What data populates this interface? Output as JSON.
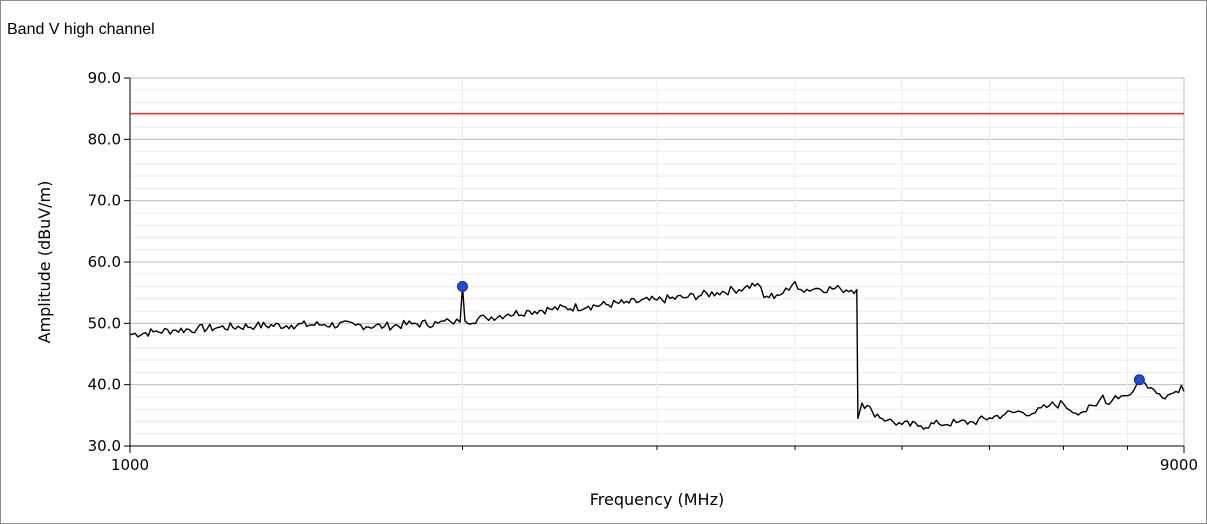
{
  "chart_data": {
    "type": "line",
    "title": "Band V high channel",
    "xlabel": "Frequency (MHz)",
    "ylabel": "Amplitude (dBuV/m)",
    "xscale": "log",
    "xlim": [
      1000,
      9000
    ],
    "ylim": [
      30,
      90
    ],
    "x_tick_labels": [
      "1000",
      "9000"
    ],
    "x_minor_ticks": [
      2000,
      3000,
      4000,
      5000,
      6000,
      7000,
      8000
    ],
    "y_ticks": [
      30,
      40,
      50,
      60,
      70,
      80,
      90
    ],
    "y_tick_labels": [
      "30.0",
      "40.0",
      "50.0",
      "60.0",
      "70.0",
      "80.0",
      "90.0"
    ],
    "grid": true,
    "limit_line": {
      "value": 84.2,
      "color": "#e8321e"
    },
    "series": [
      {
        "color": "#000000",
        "points": [
          [
            1000,
            48.2
          ],
          [
            1050,
            48.6
          ],
          [
            1100,
            48.9
          ],
          [
            1150,
            49.1
          ],
          [
            1200,
            49.3
          ],
          [
            1300,
            49.6
          ],
          [
            1400,
            49.7
          ],
          [
            1500,
            49.8
          ],
          [
            1600,
            49.7
          ],
          [
            1700,
            49.5
          ],
          [
            1800,
            49.9
          ],
          [
            1900,
            50.0
          ],
          [
            1950,
            50.3
          ],
          [
            1990,
            50.2
          ],
          [
            2000,
            56.0
          ],
          [
            2010,
            50.4
          ],
          [
            2100,
            50.9
          ],
          [
            2200,
            51.5
          ],
          [
            2300,
            52.0
          ],
          [
            2400,
            52.3
          ],
          [
            2600,
            52.8
          ],
          [
            2800,
            53.3
          ],
          [
            3000,
            53.8
          ],
          [
            3200,
            54.3
          ],
          [
            3400,
            55.0
          ],
          [
            3600,
            55.8
          ],
          [
            3700,
            56.5
          ],
          [
            3750,
            54.2
          ],
          [
            3850,
            54.6
          ],
          [
            3950,
            55.4
          ],
          [
            4000,
            56.8
          ],
          [
            4050,
            55.5
          ],
          [
            4200,
            55.7
          ],
          [
            4400,
            55.6
          ],
          [
            4550,
            55.5
          ],
          [
            4560,
            34.5
          ],
          [
            4600,
            37.0
          ],
          [
            4700,
            35.6
          ],
          [
            4850,
            34.2
          ],
          [
            5000,
            33.5
          ],
          [
            5200,
            33.3
          ],
          [
            5400,
            33.6
          ],
          [
            5600,
            33.8
          ],
          [
            5800,
            33.9
          ],
          [
            6000,
            34.6
          ],
          [
            6200,
            35.2
          ],
          [
            6400,
            35.6
          ],
          [
            6600,
            35.4
          ],
          [
            6800,
            36.6
          ],
          [
            7000,
            36.9
          ],
          [
            7100,
            35.8
          ],
          [
            7300,
            35.6
          ],
          [
            7500,
            36.6
          ],
          [
            7600,
            38.3
          ],
          [
            7700,
            36.8
          ],
          [
            7800,
            38.2
          ],
          [
            7950,
            38.2
          ],
          [
            8100,
            39.0
          ],
          [
            8200,
            40.8
          ],
          [
            8300,
            40.2
          ],
          [
            8500,
            38.6
          ],
          [
            8700,
            38.3
          ],
          [
            8850,
            38.9
          ],
          [
            8950,
            39.9
          ],
          [
            9000,
            38.9
          ]
        ]
      }
    ],
    "markers": [
      {
        "x": 2000,
        "y": 56.0,
        "color": "#1c4fd6"
      },
      {
        "x": 8200,
        "y": 40.8,
        "color": "#1c4fd6"
      }
    ]
  }
}
